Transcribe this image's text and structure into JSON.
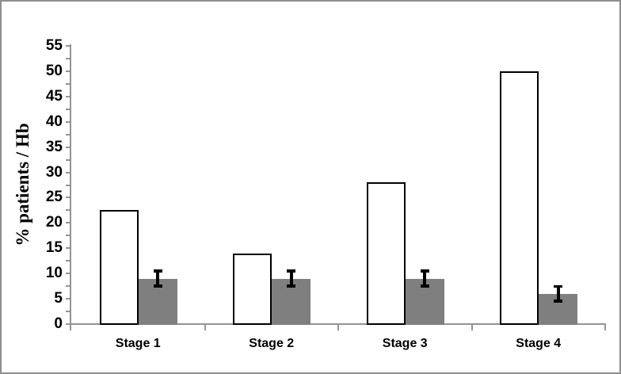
{
  "figure": {
    "background": "#ffffff",
    "border_color": "#8f8f8f",
    "axis_color": "#949494",
    "text_color": "#000000"
  },
  "chart_data": {
    "type": "bar",
    "title": "",
    "ylabel": "% patients / Hb",
    "xlabel": "",
    "categories": [
      "Stage 1",
      "Stage 2",
      "Stage 3",
      "Stage 4"
    ],
    "series": [
      {
        "name": "white bars",
        "values": [
          22.5,
          14,
          28,
          50
        ],
        "fill": "#ffffff",
        "border": "#000000"
      },
      {
        "name": "grey bars",
        "values": [
          9,
          9,
          9,
          6
        ],
        "fill": "#7f7f7f",
        "border": "#7f7f7f",
        "error_bars": [
          1.5,
          1.5,
          1.5,
          1.5
        ],
        "error_color": "#000000"
      }
    ],
    "ylim": [
      0,
      55
    ],
    "ytick_major_step": 5,
    "ytick_minor_step": 2.5,
    "ytick_labels": [
      "0",
      "5",
      "10",
      "15",
      "20",
      "25",
      "30",
      "35",
      "40",
      "45",
      "50",
      "55"
    ],
    "grid": false,
    "legend": "none"
  }
}
